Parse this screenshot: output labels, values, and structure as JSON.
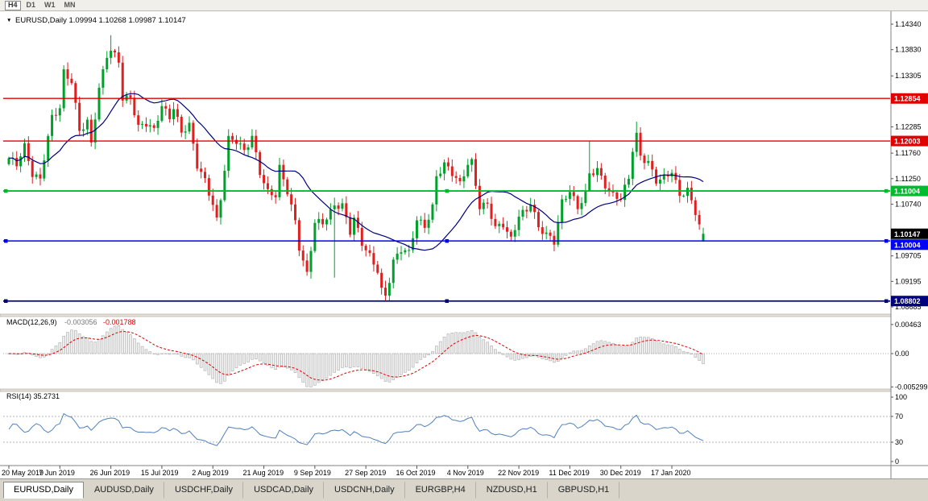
{
  "toolbar": {
    "buttons": [
      {
        "label": "H4",
        "active": true
      },
      {
        "label": "D1",
        "active": false
      },
      {
        "label": "W1",
        "active": false
      },
      {
        "label": "MN",
        "active": false
      }
    ]
  },
  "chart": {
    "symbol": "EURUSD,Daily",
    "ohlc_text": "1.09994 1.10268 1.09987 1.10147"
  },
  "chart_data": {
    "type": "candlestick+indicators",
    "symbol": "EURUSD",
    "timeframe": "Daily",
    "x_labels": [
      "20 May 2019",
      "7 Jun 2019",
      "26 Jun 2019",
      "15 Jul 2019",
      "2 Aug 2019",
      "21 Aug 2019",
      "9 Sep 2019",
      "27 Sep 2019",
      "16 Oct 2019",
      "4 Nov 2019",
      "22 Nov 2019",
      "11 Dec 2019",
      "30 Dec 2019",
      "17 Jan 2020"
    ],
    "price_range": {
      "top": 1.1434,
      "bottom": 1.08685
    },
    "price_axis_ticks": [
      "1.14340",
      "1.13830",
      "1.13305",
      "1.12285",
      "1.11760",
      "1.11250",
      "1.10740",
      "1.09705",
      "1.09195",
      "1.08685"
    ],
    "candle_count": 178,
    "price_path_anchors": [
      [
        0,
        1.1166
      ],
      [
        2,
        1.115
      ],
      [
        4,
        1.1186
      ],
      [
        6,
        1.1135
      ],
      [
        8,
        1.1128
      ],
      [
        9,
        1.1172
      ],
      [
        11,
        1.1248
      ],
      [
        13,
        1.1262
      ],
      [
        14,
        1.1333
      ],
      [
        16,
        1.1318
      ],
      [
        18,
        1.1225
      ],
      [
        20,
        1.1242
      ],
      [
        21,
        1.1198
      ],
      [
        23,
        1.1302
      ],
      [
        25,
        1.1368
      ],
      [
        26,
        1.1378
      ],
      [
        28,
        1.1362
      ],
      [
        29,
        1.1288
      ],
      [
        31,
        1.1292
      ],
      [
        33,
        1.1228
      ],
      [
        35,
        1.1232
      ],
      [
        37,
        1.1218
      ],
      [
        39,
        1.1272
      ],
      [
        41,
        1.1252
      ],
      [
        42,
        1.1272
      ],
      [
        44,
        1.1218
      ],
      [
        46,
        1.1228
      ],
      [
        48,
        1.1148
      ],
      [
        50,
        1.1122
      ],
      [
        52,
        1.1078
      ],
      [
        53,
        1.1045
      ],
      [
        54,
        1.1088
      ],
      [
        56,
        1.1202
      ],
      [
        58,
        1.1196
      ],
      [
        60,
        1.1178
      ],
      [
        62,
        1.1212
      ],
      [
        64,
        1.1142
      ],
      [
        66,
        1.1098
      ],
      [
        68,
        1.1088
      ],
      [
        69,
        1.1142
      ],
      [
        71,
        1.1098
      ],
      [
        73,
        1.1042
      ],
      [
        74,
        1.0992
      ],
      [
        76,
        1.0936
      ],
      [
        78,
        1.1036
      ],
      [
        80,
        1.1032
      ],
      [
        82,
        1.1056
      ],
      [
        83,
        1.1072
      ],
      [
        85,
        1.1076
      ],
      [
        87,
        1.1022
      ],
      [
        88,
        1.1046
      ],
      [
        90,
        1.0992
      ],
      [
        92,
        1.0966
      ],
      [
        94,
        1.0942
      ],
      [
        95,
        1.0904
      ],
      [
        96,
        1.0892
      ],
      [
        98,
        1.0962
      ],
      [
        100,
        1.0982
      ],
      [
        102,
        1.0972
      ],
      [
        104,
        1.1042
      ],
      [
        106,
        1.1032
      ],
      [
        108,
        1.1072
      ],
      [
        109,
        1.1132
      ],
      [
        111,
        1.1152
      ],
      [
        113,
        1.1132
      ],
      [
        115,
        1.1112
      ],
      [
        117,
        1.1158
      ],
      [
        118,
        1.1162
      ],
      [
        120,
        1.1072
      ],
      [
        122,
        1.1072
      ],
      [
        124,
        1.1022
      ],
      [
        126,
        1.1032
      ],
      [
        128,
        1.1006
      ],
      [
        130,
        1.1056
      ],
      [
        132,
        1.1062
      ],
      [
        133,
        1.1076
      ],
      [
        135,
        1.1022
      ],
      [
        137,
        1.1012
      ],
      [
        139,
        1.1002
      ],
      [
        141,
        1.1082
      ],
      [
        143,
        1.1102
      ],
      [
        145,
        1.1062
      ],
      [
        147,
        1.1092
      ],
      [
        148,
        1.1132
      ],
      [
        150,
        1.1146
      ],
      [
        152,
        1.1116
      ],
      [
        154,
        1.1092
      ],
      [
        156,
        1.1082
      ],
      [
        158,
        1.1122
      ],
      [
        159,
        1.1182
      ],
      [
        160,
        1.1212
      ],
      [
        161,
        1.1172
      ],
      [
        163,
        1.1162
      ],
      [
        165,
        1.1122
      ],
      [
        167,
        1.1122
      ],
      [
        169,
        1.1136
      ],
      [
        171,
        1.1092
      ],
      [
        173,
        1.1106
      ],
      [
        175,
        1.1062
      ],
      [
        176,
        1.1032
      ],
      [
        177,
        1.10147
      ]
    ],
    "wick_overrides": {
      "26": {
        "high": 1.1412
      },
      "83": {
        "low": 1.0927,
        "high": 1.1087
      },
      "96": {
        "low": 1.0881
      },
      "148": {
        "high": 1.12,
        "low": 1.11
      },
      "160": {
        "high": 1.1239
      }
    },
    "last_candle": {
      "open": 1.09994,
      "high": 1.10268,
      "low": 1.09987,
      "close": 1.10147
    },
    "hlines": [
      {
        "price": 1.12854,
        "label": "1.12854",
        "color": "#e00000",
        "width": 1.4,
        "handles": false
      },
      {
        "price": 1.12003,
        "label": "1.12003",
        "color": "#e00000",
        "width": 1.4,
        "handles": false
      },
      {
        "price": 1.11004,
        "label": "1.11004",
        "color": "#00bb2d",
        "width": 1.8,
        "handles": true
      },
      {
        "price": 1.10004,
        "label": "1.10004",
        "color": "#0000ff",
        "width": 1.6,
        "handles": true
      },
      {
        "price": 1.08802,
        "label": "1.08802",
        "color": "#000080",
        "width": 1.8,
        "handles": true
      }
    ],
    "current_price": {
      "value": 1.10147,
      "label": "1.10147",
      "box_color": "#000000"
    },
    "ma": {
      "period": 20,
      "color": "#000080"
    },
    "macd": {
      "label": "MACD(12,26,9)",
      "value_main": "-0.003056",
      "value_signal": "-0.001788",
      "axis_labels": [
        "0.00463",
        "0.00",
        "-0.005299"
      ],
      "range": {
        "top": 0.00463,
        "bottom": -0.005299
      },
      "signal_color": "#e00000",
      "hist_fill": "#ececec",
      "hist_stroke": "#adadad"
    },
    "rsi": {
      "label": "RSI(14)",
      "value_text": "35.2731",
      "axis_labels": [
        "100",
        "70",
        "30",
        "0"
      ],
      "levels": [
        70,
        30
      ],
      "color": "#4f81bd"
    },
    "colors": {
      "bull": "#00a02a",
      "bear": "#e01f1f"
    }
  },
  "tabs": {
    "items": [
      {
        "label": "EURUSD,Daily",
        "active": true
      },
      {
        "label": "AUDUSD,Daily",
        "active": false
      },
      {
        "label": "USDCHF,Daily",
        "active": false
      },
      {
        "label": "USDCAD,Daily",
        "active": false
      },
      {
        "label": "USDCNH,Daily",
        "active": false
      },
      {
        "label": "EURGBP,H4",
        "active": false
      },
      {
        "label": "NZDUSD,H1",
        "active": false
      },
      {
        "label": "GBPUSD,H1",
        "active": false
      }
    ]
  }
}
